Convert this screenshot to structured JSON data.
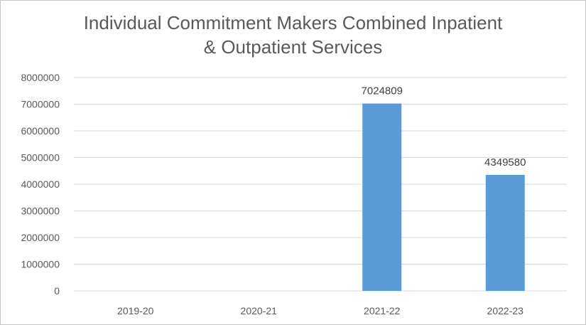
{
  "chart_data": {
    "type": "bar",
    "title_lines": [
      "Individual Commitment Makers Combined Inpatient",
      "& Outpatient Services"
    ],
    "categories": [
      "2019-20",
      "2020-21",
      "2021-22",
      "2022-23"
    ],
    "values": [
      0,
      0,
      7024809,
      4349580
    ],
    "data_labels": [
      "",
      "",
      "7024809",
      "4349580"
    ],
    "y_ticks": [
      "0",
      "1000000",
      "2000000",
      "3000000",
      "4000000",
      "5000000",
      "6000000",
      "7000000",
      "8000000"
    ],
    "ylim": [
      0,
      8000000
    ],
    "grid": true,
    "legend": "none",
    "colors": {
      "bar": "#5b9bd5",
      "grid": "#d9d9d9",
      "text": "#595959"
    }
  }
}
